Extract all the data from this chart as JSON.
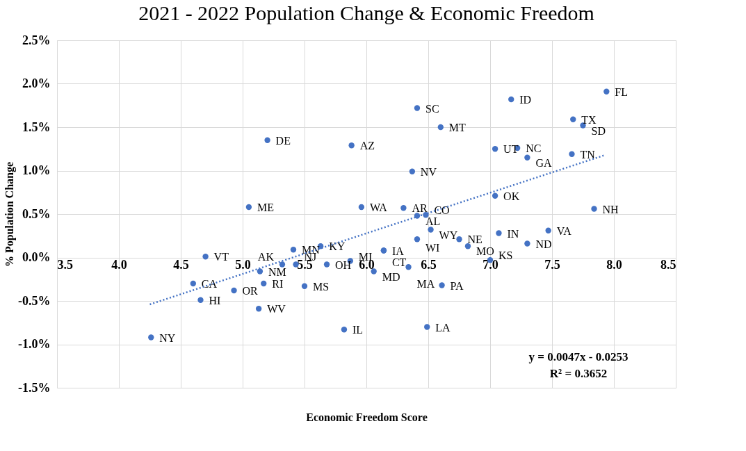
{
  "chart_data": {
    "type": "scatter",
    "title": "2021 - 2022 Population Change & Economic Freedom",
    "xlabel": "Economic Freedom Score",
    "ylabel": "% Population Change",
    "xlim": [
      3.5,
      8.5
    ],
    "ylim": [
      -0.015,
      0.025
    ],
    "xticks": [
      3.5,
      {
        "value": 4,
        "label": "4.0"
      },
      4.5,
      {
        "value": 5,
        "label": "5.0"
      },
      5.5,
      {
        "value": 6,
        "label": "6.0"
      },
      6.5,
      {
        "value": 7,
        "label": "7.0"
      },
      7.5,
      {
        "value": 8,
        "label": "8.0"
      },
      8.5
    ],
    "yticks": [
      {
        "value": -0.015,
        "label": "-1.5%"
      },
      {
        "value": -0.01,
        "label": "-1.0%"
      },
      {
        "value": -0.005,
        "label": "-0.5%"
      },
      {
        "value": 0,
        "label": "0.0%"
      },
      {
        "value": 0.005,
        "label": "0.5%"
      },
      {
        "value": 0.01,
        "label": "1.0%"
      },
      {
        "value": 0.015,
        "label": "1.5%"
      },
      {
        "value": 0.02,
        "label": "2.0%"
      },
      {
        "value": 0.025,
        "label": "2.5%"
      }
    ],
    "grid": true,
    "series": [
      {
        "color": "#4472c4",
        "marker": "circle",
        "x": [
          5.2,
          5.05,
          4.7,
          4.6,
          4.66,
          4.93,
          5.13,
          4.26,
          5.14,
          5.17,
          5.41,
          5.32,
          5.43,
          5.5,
          5.63,
          5.68,
          6.41,
          6.6,
          5.88,
          7.17,
          7.04,
          6.37,
          7.04,
          5.96,
          6.3,
          6.41,
          6.48,
          6.52,
          6.41,
          6.75,
          6.82,
          7.07,
          6.14,
          6.14,
          7.0,
          5.87,
          6.06,
          6.34,
          6.61,
          5.82,
          6.49,
          7.94,
          7.67,
          7.75,
          7.22,
          7.3,
          7.66,
          7.84,
          7.47,
          7.3
        ],
        "values": [
          0.0135,
          0.0058,
          0.0001,
          -0.003,
          -0.0049,
          -0.0038,
          -0.0059,
          -0.0092,
          -0.0016,
          -0.003,
          0.0009,
          -0.0008,
          -0.0008,
          -0.0033,
          0.0013,
          -0.0008,
          0.0172,
          0.015,
          0.0129,
          0.0182,
          0.0125,
          0.0099,
          0.0071,
          0.0058,
          0.0057,
          0.0048,
          0.0049,
          0.0032,
          0.0021,
          0.0021,
          0.0013,
          0.0028,
          0.0008,
          0.0008,
          -0.0003,
          -0.0004,
          -0.0016,
          -0.0011,
          -0.0032,
          -0.0083,
          -0.008,
          0.0191,
          0.0159,
          0.0152,
          0.0126,
          0.0115,
          0.0119,
          0.0056,
          0.0031,
          0.0016
        ],
        "value_labels": [
          "DE",
          "ME",
          "VT",
          "CA",
          "HI",
          "OR",
          "WV",
          "NY",
          "NM",
          "RI",
          "MN",
          "AK",
          "NJ",
          "MS",
          "KY",
          "OH",
          "SC",
          "MT",
          "AZ",
          "ID",
          "UT",
          "NV",
          "OK",
          "WA",
          "AR",
          "AL",
          "CO",
          "WY",
          "WI",
          "NE",
          "MO",
          "IN",
          "IA",
          "CT",
          "KS",
          "MI",
          "MD",
          "MA",
          "PA",
          "IL",
          "LA",
          "FL",
          "TX",
          "SD",
          "NC",
          "GA",
          "TN",
          "NH",
          "VA",
          "ND"
        ]
      },
      {
        "type": "line",
        "color": "#4472c4",
        "line_style": "dotted",
        "x": [
          4.25,
          7.93
        ],
        "values": [
          -0.0054,
          0.0118
        ]
      }
    ],
    "annotations": [
      "y = 0.0047x - 0.0253",
      "R² = 0.3652"
    ]
  }
}
